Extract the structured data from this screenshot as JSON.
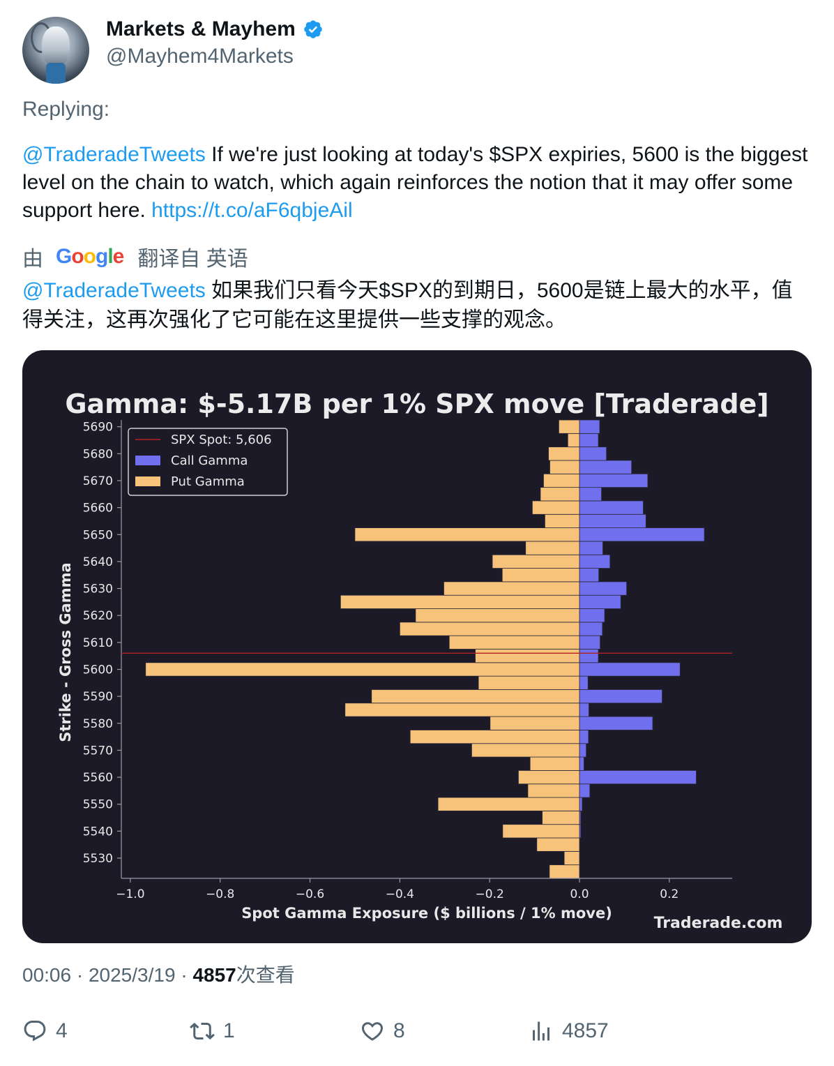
{
  "author": {
    "display_name": "Markets & Mayhem",
    "handle": "@Mayhem4Markets"
  },
  "replying_label": "Replying:",
  "tweet": {
    "mention": "@TraderadeTweets",
    "text": " If we're just looking at today's $SPX expiries, 5600 is the biggest level on the chain to watch, which again reinforces the notion that it may offer some support here. ",
    "link": "https://t.co/aF6qbjeAil"
  },
  "translation": {
    "by_label": "由",
    "google_label": "Google",
    "translated_from": "翻译自 英语",
    "mention": "@TraderadeTweets",
    "text": " 如果我们只看今天$SPX的到期日，5600是链上最大的水平，值得关注，这再次强化了它可能在这里提供一些支撑的观念。"
  },
  "chart_data": {
    "type": "bar",
    "orientation": "horizontal",
    "title": "Gamma: $-5.17B per 1% SPX move [Traderade]",
    "xlabel": "Spot Gamma Exposure ($ billions / 1% move)",
    "ylabel": "Strike - Gross Gamma",
    "watermark": "Traderade.com",
    "xlim": [
      -1.02,
      0.34
    ],
    "x_ticks": [
      "−1.0",
      "−0.8",
      "−0.6",
      "−0.4",
      "−0.2",
      "0.0",
      "0.2"
    ],
    "x_tick_values": [
      -1.0,
      -0.8,
      -0.6,
      -0.4,
      -0.2,
      0.0,
      0.2
    ],
    "y_ticks": [
      "5690",
      "5680",
      "5670",
      "5660",
      "5650",
      "5640",
      "5630",
      "5620",
      "5610",
      "5600",
      "5590",
      "5580",
      "5570",
      "5560",
      "5550",
      "5540",
      "5530"
    ],
    "y_tick_values": [
      5690,
      5680,
      5670,
      5660,
      5650,
      5640,
      5630,
      5620,
      5610,
      5600,
      5590,
      5580,
      5570,
      5560,
      5550,
      5540,
      5530
    ],
    "ylim": [
      5522.5,
      5692.5
    ],
    "spot": 5606,
    "legend": {
      "placement": "top-left",
      "entries": [
        "SPX Spot: 5,606",
        "Call Gamma",
        "Put Gamma"
      ]
    },
    "colors": {
      "background": "#1c1a27",
      "call": "#7070ee",
      "put": "#f7c27a",
      "spot_line": "#b22222",
      "text": "#e8e8e8",
      "axis": "#9a9aa8"
    },
    "strikes": [
      5525,
      5530,
      5535,
      5540,
      5545,
      5550,
      5555,
      5560,
      5565,
      5570,
      5575,
      5580,
      5585,
      5590,
      5595,
      5600,
      5605,
      5610,
      5615,
      5620,
      5625,
      5630,
      5635,
      5640,
      5645,
      5650,
      5655,
      5660,
      5665,
      5670,
      5675,
      5680,
      5685,
      5690
    ],
    "series": [
      {
        "name": "Call Gamma",
        "values": [
          0.0,
          0.0,
          0.0,
          0.003,
          0.003,
          0.006,
          0.023,
          0.26,
          0.01,
          0.015,
          0.02,
          0.163,
          0.021,
          0.184,
          0.019,
          0.224,
          0.042,
          0.046,
          0.051,
          0.056,
          0.092,
          0.105,
          0.043,
          0.068,
          0.052,
          0.278,
          0.148,
          0.142,
          0.049,
          0.152,
          0.116,
          0.06,
          0.042,
          0.045
        ]
      },
      {
        "name": "Put Gamma",
        "values": [
          -0.067,
          -0.034,
          -0.095,
          -0.171,
          -0.083,
          -0.315,
          -0.115,
          -0.136,
          -0.11,
          -0.24,
          -0.377,
          -0.199,
          -0.522,
          -0.463,
          -0.225,
          -0.966,
          -0.232,
          -0.29,
          -0.4,
          -0.365,
          -0.532,
          -0.302,
          -0.172,
          -0.194,
          -0.12,
          -0.5,
          -0.077,
          -0.105,
          -0.087,
          -0.08,
          -0.066,
          -0.069,
          -0.026,
          -0.046
        ]
      }
    ]
  },
  "meta": {
    "time": "00:06",
    "date": "2025/3/19",
    "views_count": "4857",
    "views_label": "次查看"
  },
  "actions": {
    "replies": "4",
    "retweets": "1",
    "likes": "8",
    "views": "4857"
  }
}
